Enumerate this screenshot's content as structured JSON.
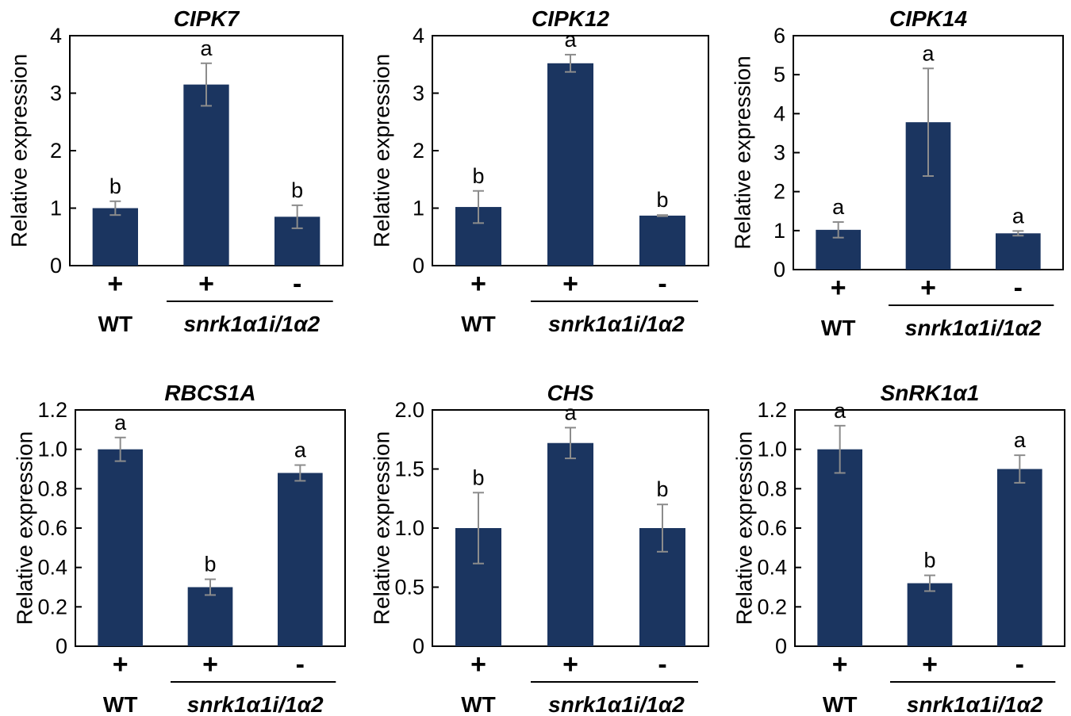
{
  "figure": {
    "bar_color": "#1b3560",
    "error_color": "#8c8c8c",
    "axis_color": "#000000"
  },
  "chart_data": [
    {
      "type": "bar",
      "title": "CIPK7",
      "ylabel": "Relative expression",
      "ylim": [
        0,
        4
      ],
      "yticks": [
        "0",
        "1",
        "2",
        "3",
        "4"
      ],
      "yticks_values": [
        0,
        1,
        2,
        3,
        4
      ],
      "categories": [
        "WT +",
        "snrk1α1i/1α2 +",
        "snrk1α1i/1α2 -"
      ],
      "treatments": [
        "+",
        "+",
        "-"
      ],
      "values": [
        1.0,
        3.15,
        0.85
      ],
      "errors": [
        0.12,
        0.37,
        0.2
      ],
      "significance": [
        "b",
        "a",
        "b"
      ],
      "group_labels": {
        "wt": "WT",
        "mutant": "snrk1α1i/1α2"
      }
    },
    {
      "type": "bar",
      "title": "CIPK12",
      "ylabel": "Relative expression",
      "ylim": [
        0,
        4
      ],
      "yticks": [
        "0",
        "1",
        "2",
        "3",
        "4"
      ],
      "yticks_values": [
        0,
        1,
        2,
        3,
        4
      ],
      "categories": [
        "WT +",
        "snrk1α1i/1α2 +",
        "snrk1α1i/1α2 -"
      ],
      "treatments": [
        "+",
        "+",
        "-"
      ],
      "values": [
        1.02,
        3.52,
        0.87
      ],
      "errors": [
        0.28,
        0.15,
        0.01
      ],
      "significance": [
        "b",
        "a",
        "b"
      ],
      "group_labels": {
        "wt": "WT",
        "mutant": "snrk1α1i/1α2"
      }
    },
    {
      "type": "bar",
      "title": "CIPK14",
      "ylabel": "Relative expression",
      "ylim": [
        0,
        6
      ],
      "yticks": [
        "0",
        "1",
        "2",
        "3",
        "4",
        "5",
        "6"
      ],
      "yticks_values": [
        0,
        1,
        2,
        3,
        4,
        5,
        6
      ],
      "categories": [
        "WT +",
        "snrk1α1i/1α2 +",
        "snrk1α1i/1α2 -"
      ],
      "treatments": [
        "+",
        "+",
        "-"
      ],
      "values": [
        1.02,
        3.78,
        0.93
      ],
      "errors": [
        0.2,
        1.38,
        0.06
      ],
      "significance": [
        "a",
        "a",
        "a"
      ],
      "group_labels": {
        "wt": "WT",
        "mutant": "snrk1α1i/1α2"
      }
    },
    {
      "type": "bar",
      "title": "RBCS1A",
      "ylabel": "Relative expression",
      "ylim": [
        0,
        1.2
      ],
      "yticks": [
        "0",
        "0.2",
        "0.4",
        "0.6",
        "0.8",
        "1.0",
        "1.2"
      ],
      "yticks_values": [
        0,
        0.2,
        0.4,
        0.6,
        0.8,
        1.0,
        1.2
      ],
      "categories": [
        "WT +",
        "snrk1α1i/1α2 +",
        "snrk1α1i/1α2 -"
      ],
      "treatments": [
        "+",
        "+",
        "-"
      ],
      "values": [
        1.0,
        0.3,
        0.88
      ],
      "errors": [
        0.06,
        0.04,
        0.04
      ],
      "significance": [
        "a",
        "b",
        "a"
      ],
      "group_labels": {
        "wt": "WT",
        "mutant": "snrk1α1i/1α2"
      }
    },
    {
      "type": "bar",
      "title": "CHS",
      "ylabel": "Relative expression",
      "ylim": [
        0,
        2.0
      ],
      "yticks": [
        "0",
        "0.5",
        "1.0",
        "1.5",
        "2.0"
      ],
      "yticks_values": [
        0,
        0.5,
        1.0,
        1.5,
        2.0
      ],
      "categories": [
        "WT +",
        "snrk1α1i/1α2 +",
        "snrk1α1i/1α2 -"
      ],
      "treatments": [
        "+",
        "+",
        "-"
      ],
      "values": [
        1.0,
        1.72,
        1.0
      ],
      "errors": [
        0.3,
        0.13,
        0.2
      ],
      "significance": [
        "b",
        "a",
        "b"
      ],
      "group_labels": {
        "wt": "WT",
        "mutant": "snrk1α1i/1α2"
      }
    },
    {
      "type": "bar",
      "title": "SnRK1α1",
      "ylabel": "Relative expression",
      "ylim": [
        0,
        1.2
      ],
      "yticks": [
        "0",
        "0.2",
        "0.4",
        "0.6",
        "0.8",
        "1.0",
        "1.2"
      ],
      "yticks_values": [
        0,
        0.2,
        0.4,
        0.6,
        0.8,
        1.0,
        1.2
      ],
      "categories": [
        "WT +",
        "snrk1α1i/1α2 +",
        "snrk1α1i/1α2 -"
      ],
      "treatments": [
        "+",
        "+",
        "-"
      ],
      "values": [
        1.0,
        0.32,
        0.9
      ],
      "errors": [
        0.12,
        0.04,
        0.07
      ],
      "significance": [
        "a",
        "b",
        "a"
      ],
      "group_labels": {
        "wt": "WT",
        "mutant": "snrk1α1i/1α2"
      }
    }
  ]
}
